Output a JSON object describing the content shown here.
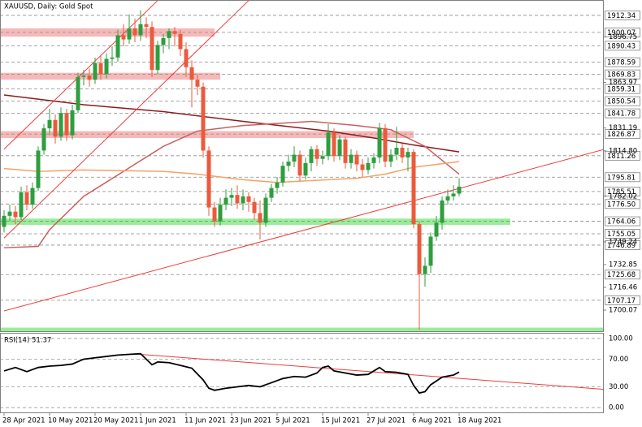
{
  "chart_data": [
    {
      "type": "candlestick",
      "title": "XAUUSD, Daily:  Gold Spot",
      "categories": [
        "28 Apr 2021",
        null,
        null,
        null,
        null,
        null,
        null,
        null,
        "10 May 2021",
        null,
        null,
        null,
        null,
        null,
        null,
        null,
        "20 May 2021",
        null,
        null,
        null,
        null,
        null,
        null,
        null,
        "1 Jun 2021",
        null,
        null,
        null,
        null,
        null,
        null,
        null,
        "11 Jun 2021",
        null,
        null,
        null,
        null,
        null,
        null,
        null,
        "23 Jun 2021",
        null,
        null,
        null,
        null,
        null,
        null,
        null,
        "5 Jul 2021",
        null,
        null,
        null,
        null,
        null,
        null,
        null,
        "15 Jul 2021",
        null,
        null,
        null,
        null,
        null,
        null,
        null,
        "27 Jul 2021",
        null,
        null,
        null,
        null,
        null,
        null,
        null,
        "6 Aug 2021",
        null,
        null,
        null,
        null,
        null,
        null,
        null,
        "18 Aug 2021"
      ],
      "open": [
        1760,
        1768,
        1771,
        1767,
        1785,
        1776,
        1788,
        1815,
        1831,
        1837,
        1825,
        1842,
        1826,
        1844,
        1868,
        1869,
        1866,
        1878,
        1870,
        1881,
        1882,
        1898,
        1895,
        1903,
        1898,
        1906,
        1904,
        1873,
        1891,
        1896,
        1901,
        1899,
        1888,
        1875,
        1866,
        1861,
        1815,
        1774,
        1764,
        1776,
        1781,
        1783,
        1777,
        1782,
        1778,
        1770,
        1763,
        1781,
        1788,
        1792,
        1804,
        1807,
        1812,
        1797,
        1806,
        1816,
        1809,
        1811,
        1828,
        1811,
        1823,
        1806,
        1812,
        1805,
        1801,
        1806,
        1810,
        1831,
        1807,
        1812,
        1817,
        1810,
        1814,
        1762,
        1726,
        1732,
        1753,
        1763,
        1779,
        1782,
        1784
      ],
      "high": [
        1772,
        1776,
        1775,
        1789,
        1790,
        1792,
        1818,
        1834,
        1845,
        1841,
        1846,
        1845,
        1848,
        1871,
        1873,
        1874,
        1882,
        1883,
        1885,
        1890,
        1902,
        1906,
        1913,
        1910,
        1916,
        1911,
        1908,
        1894,
        1899,
        1903,
        1904,
        1902,
        1893,
        1880,
        1870,
        1864,
        1818,
        1778,
        1781,
        1787,
        1788,
        1790,
        1787,
        1785,
        1781,
        1779,
        1784,
        1791,
        1796,
        1807,
        1812,
        1818,
        1815,
        1810,
        1818,
        1819,
        1815,
        1834,
        1831,
        1826,
        1825,
        1816,
        1815,
        1809,
        1810,
        1813,
        1835,
        1834,
        1816,
        1832,
        1820,
        1817,
        1816,
        1764,
        1738,
        1756,
        1768,
        1782,
        1787,
        1790,
        1795
      ],
      "low": [
        1756,
        1764,
        1762,
        1765,
        1772,
        1773,
        1786,
        1812,
        1826,
        1820,
        1822,
        1822,
        1823,
        1842,
        1862,
        1861,
        1863,
        1866,
        1867,
        1876,
        1879,
        1890,
        1892,
        1893,
        1894,
        1896,
        1868,
        1870,
        1885,
        1888,
        1890,
        1883,
        1868,
        1846,
        1855,
        1810,
        1768,
        1760,
        1761,
        1772,
        1775,
        1773,
        1772,
        1771,
        1765,
        1751,
        1760,
        1778,
        1784,
        1789,
        1800,
        1803,
        1793,
        1794,
        1800,
        1804,
        1805,
        1808,
        1807,
        1808,
        1802,
        1802,
        1800,
        1796,
        1798,
        1802,
        1806,
        1803,
        1803,
        1808,
        1806,
        1800,
        1759,
        1686,
        1717,
        1727,
        1750,
        1758,
        1776,
        1779,
        1782
      ],
      "close": [
        1768,
        1771,
        1767,
        1785,
        1776,
        1788,
        1815,
        1831,
        1837,
        1825,
        1842,
        1826,
        1844,
        1868,
        1869,
        1866,
        1878,
        1870,
        1881,
        1882,
        1898,
        1895,
        1903,
        1898,
        1906,
        1904,
        1873,
        1891,
        1896,
        1901,
        1899,
        1888,
        1875,
        1866,
        1861,
        1815,
        1774,
        1764,
        1776,
        1781,
        1783,
        1777,
        1782,
        1778,
        1770,
        1763,
        1781,
        1788,
        1792,
        1804,
        1807,
        1812,
        1797,
        1806,
        1816,
        1809,
        1811,
        1828,
        1811,
        1823,
        1806,
        1812,
        1805,
        1801,
        1806,
        1810,
        1831,
        1807,
        1812,
        1817,
        1810,
        1814,
        1762,
        1726,
        1732,
        1753,
        1763,
        1779,
        1782,
        1784,
        1789
      ],
      "up_color": "#2e9e3e",
      "down_color": "#ec5a3c",
      "ylim": [
        1684.9,
        1923.4
      ],
      "yticks": [
        1896.75,
        1863.97,
        1831.19,
        {
          "value": 1814.8,
          "label": "1814.80"
        },
        1782.02,
        1749.24,
        1732.85,
        1716.46,
        1700.07
      ],
      "levels": [
        1912.34,
        1900.07,
        1890.43,
        1878.59,
        1869.83,
        1859.31,
        1850.54,
        1841.78,
        1826.87,
        1811.26,
        1795.81,
        1785.51,
        {
          "value": 1776.5,
          "label": "1776.50"
        },
        1764.06,
        1755.05,
        1746.89,
        1725.68,
        1707.17
      ],
      "moving_averages": [
        {
          "color": "#8b1c1c",
          "x": [
            0,
            14,
            28,
            42,
            57,
            65,
            72,
            80
          ],
          "values": [
            1855,
            1848,
            1843,
            1836,
            1829,
            1824,
            1819,
            1814
          ]
        },
        {
          "color": "#c9605e",
          "x": [
            0,
            6,
            8,
            14,
            21,
            28,
            34,
            42,
            54,
            62,
            68,
            74,
            80
          ],
          "values": [
            1745,
            1746,
            1758,
            1782,
            1800,
            1818,
            1829,
            1833,
            1836,
            1833,
            1830,
            1818,
            1798
          ]
        },
        {
          "color": "#f2a366",
          "x": [
            0,
            6,
            14,
            28,
            34,
            42,
            48,
            57,
            62,
            67,
            72,
            80
          ],
          "values": [
            1802,
            1800,
            1801,
            1800,
            1798,
            1794,
            1792,
            1794,
            1795,
            1798,
            1803,
            1807
          ]
        }
      ],
      "trend_lines": [
        {
          "color": "#f03c3c",
          "x": [
            0,
            112
          ],
          "values": [
            1699.5,
            1823
          ]
        },
        {
          "color": "#f03c3c",
          "x": [
            0,
            27
          ],
          "values": [
            1816,
            1923
          ]
        },
        {
          "color": "#f03c3c",
          "x": [
            0,
            43
          ],
          "values": [
            1752,
            1923
          ]
        }
      ],
      "zones": [
        {
          "color": "#f6b9b9",
          "low": 1897,
          "high": 1903,
          "x_end": 37
        },
        {
          "color": "#f6b9b9",
          "low": 1866,
          "high": 1871,
          "x_end": 38
        },
        {
          "color": "#f6b9b9",
          "low": 1824,
          "high": 1829,
          "x_end": 72
        },
        {
          "color": "#98ee98",
          "low": 1761.5,
          "high": 1766,
          "x_end": 89
        },
        {
          "color": "#98ee98",
          "low": 1684.9,
          "high": 1687.5,
          "x_end": 106
        }
      ]
    },
    {
      "type": "line",
      "title": "RSI(14) 51.37",
      "color": "#000000",
      "x": [
        0,
        2,
        4,
        6,
        8,
        10,
        12,
        14,
        16,
        18,
        20,
        22,
        24,
        26,
        27,
        29,
        31,
        33,
        35,
        36,
        37,
        39,
        41,
        43,
        45,
        47,
        49,
        51,
        53,
        55,
        56,
        57,
        58,
        60,
        62,
        64,
        66,
        67,
        69,
        71,
        72,
        73,
        74,
        75,
        77,
        79,
        80
      ],
      "values": [
        53,
        58,
        52,
        58,
        60,
        61,
        63,
        70,
        72,
        74,
        76,
        77,
        78,
        62,
        66,
        65,
        61,
        57,
        40,
        28,
        25,
        28,
        30,
        32,
        30,
        36,
        42,
        45,
        44,
        50,
        58,
        60,
        53,
        50,
        47,
        48,
        58,
        52,
        51,
        48,
        32,
        21,
        23,
        33,
        44,
        47,
        51.37
      ],
      "ylim": [
        -7,
        107
      ],
      "yticks": [
        {
          "value": 100,
          "label": "100.00"
        },
        {
          "value": 70,
          "label": "70.00"
        },
        {
          "value": 30,
          "label": "30.00"
        },
        {
          "value": 0,
          "label": "0.00"
        }
      ],
      "trend_lines": [
        {
          "color": "#f03c3c",
          "x": [
            23,
            112
          ],
          "values": [
            77.6,
            22.4
          ]
        }
      ]
    }
  ]
}
